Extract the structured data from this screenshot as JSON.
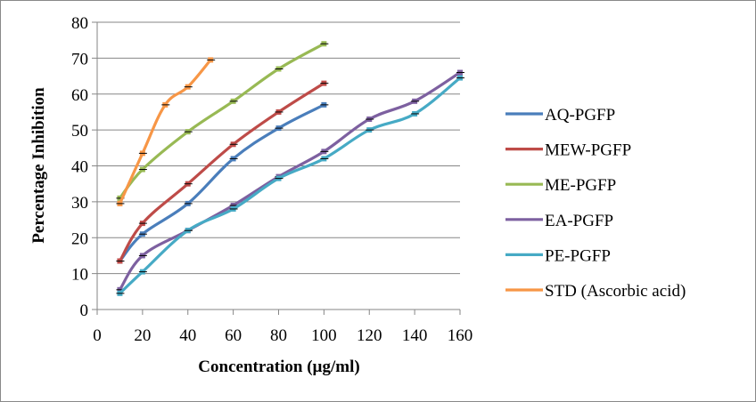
{
  "chart_data": {
    "type": "line",
    "title": "",
    "xlabel": "Concentration (µg/ml)",
    "ylabel": "Percentage Inhibition",
    "xlim": [
      0,
      160
    ],
    "ylim": [
      0,
      80
    ],
    "x_ticks": [
      0,
      20,
      40,
      60,
      80,
      100,
      120,
      140,
      160
    ],
    "y_ticks": [
      0,
      10,
      20,
      30,
      40,
      50,
      60,
      70,
      80
    ],
    "grid": "horizontal",
    "legend_position": "right",
    "smooth": true,
    "series": [
      {
        "name": "AQ-PGFP",
        "color": "#4A7EBB",
        "x": [
          10,
          20,
          40,
          60,
          80,
          100
        ],
        "values": [
          13.5,
          21,
          29.5,
          42,
          50.5,
          57
        ]
      },
      {
        "name": "MEW-PGFP",
        "color": "#BE4B48",
        "x": [
          10,
          20,
          40,
          60,
          80,
          100
        ],
        "values": [
          13.5,
          24,
          35,
          46,
          55,
          63
        ]
      },
      {
        "name": "ME-PGFP",
        "color": "#98B954",
        "x": [
          10,
          20,
          40,
          60,
          80,
          100
        ],
        "values": [
          31,
          39,
          49.5,
          58,
          67,
          74
        ]
      },
      {
        "name": "EA-PGFP",
        "color": "#7D60A0",
        "x": [
          10,
          20,
          40,
          60,
          80,
          100,
          120,
          140,
          160
        ],
        "values": [
          5.5,
          15,
          22,
          29,
          37,
          44,
          53,
          58,
          66
        ]
      },
      {
        "name": "PE-PGFP",
        "color": "#46AAC5",
        "x": [
          10,
          20,
          40,
          60,
          80,
          100,
          120,
          140,
          160
        ],
        "values": [
          4.5,
          10.5,
          22,
          28,
          36.5,
          42,
          50,
          54.5,
          64.5
        ]
      },
      {
        "name": "STD (Ascorbic acid)",
        "color": "#F79646",
        "x": [
          10,
          20,
          30,
          40,
          50
        ],
        "values": [
          29.5,
          43.5,
          57,
          62,
          69.5
        ]
      }
    ]
  }
}
